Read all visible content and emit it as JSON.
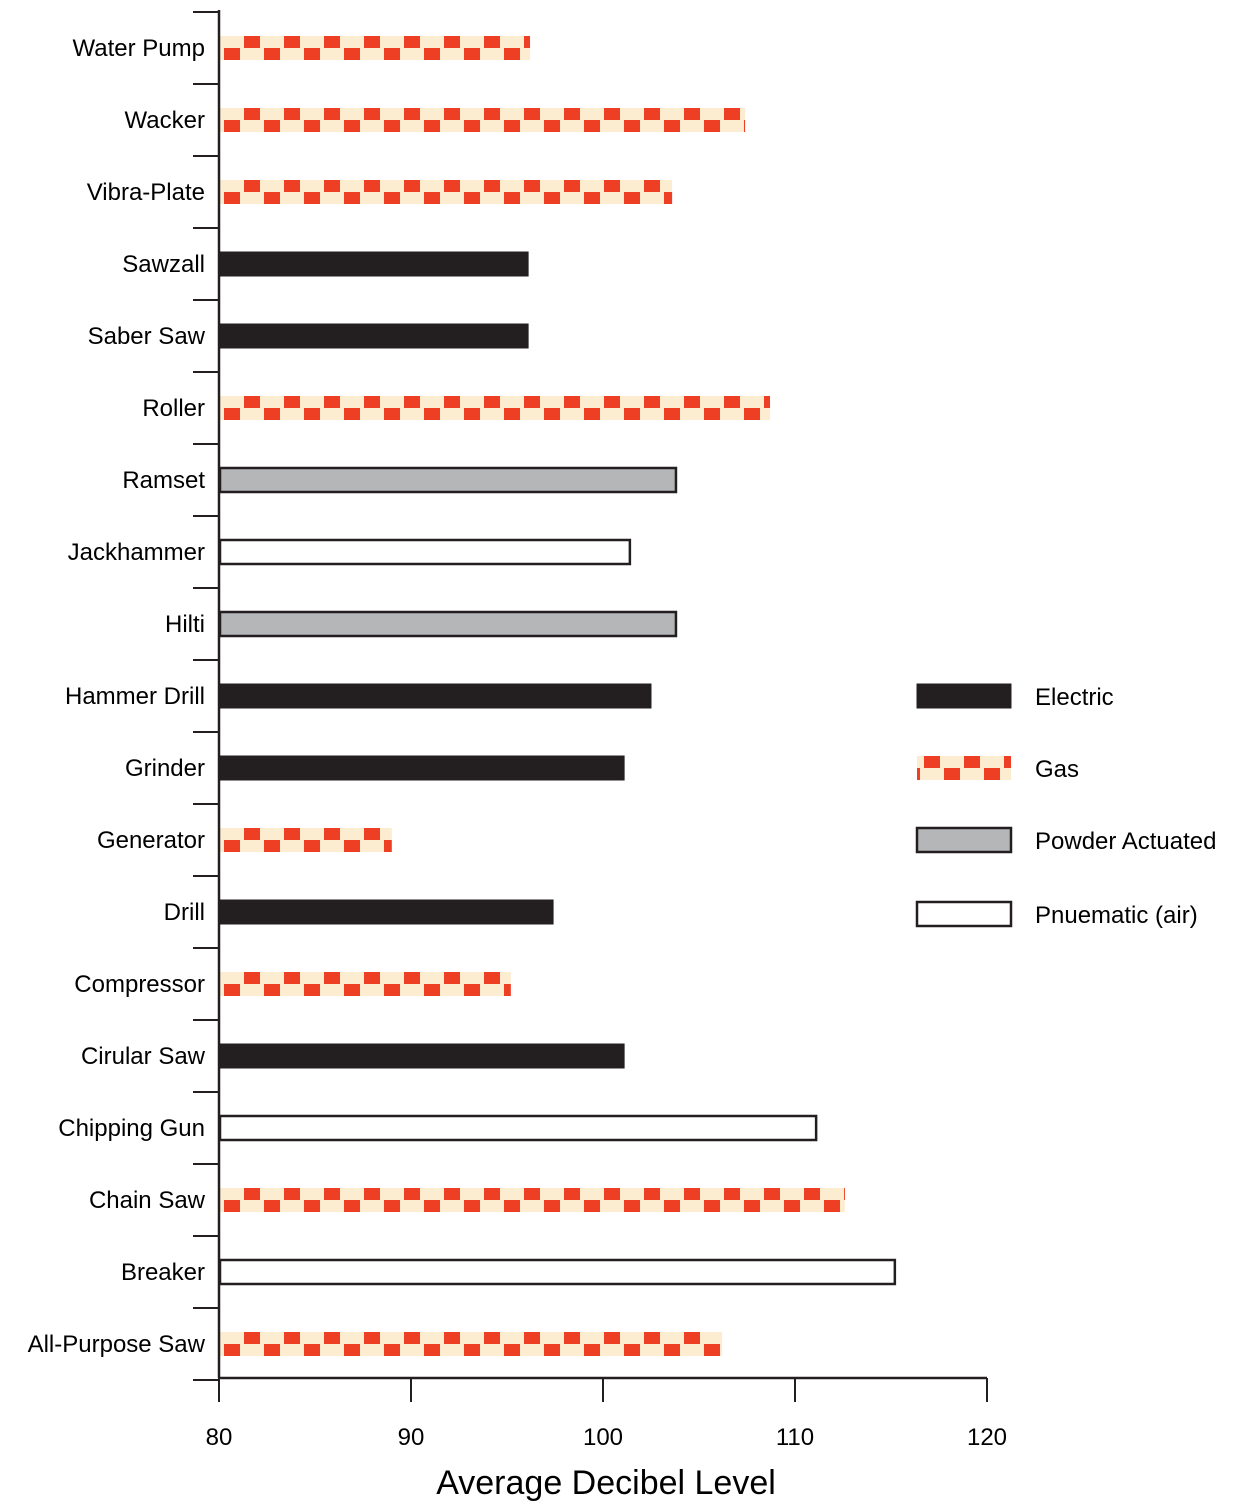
{
  "chart_data": {
    "type": "bar",
    "orientation": "horizontal",
    "xlabel": "Average Decibel Level",
    "ylabel": "",
    "xlim": [
      80,
      120
    ],
    "xticks": [
      "80",
      "90",
      "100",
      "110",
      "120"
    ],
    "grid": false,
    "legend_position": "right",
    "legend": [
      {
        "name": "Electric",
        "style": "electric"
      },
      {
        "name": "Gas",
        "style": "gas"
      },
      {
        "name": "Powder Actuated",
        "style": "powder"
      },
      {
        "name": "Pnuematic (air)",
        "style": "pneumatic"
      }
    ],
    "bars": [
      {
        "label": "Water Pump",
        "value": 96.2,
        "type": "gas"
      },
      {
        "label": "Wacker",
        "value": 107.4,
        "type": "gas"
      },
      {
        "label": "Vibra-Plate",
        "value": 103.6,
        "type": "gas"
      },
      {
        "label": "Sawzall",
        "value": 96.1,
        "type": "electric"
      },
      {
        "label": "Saber Saw",
        "value": 96.1,
        "type": "electric"
      },
      {
        "label": "Roller",
        "value": 108.7,
        "type": "gas"
      },
      {
        "label": "Ramset",
        "value": 103.8,
        "type": "powder"
      },
      {
        "label": "Jackhammer",
        "value": 101.4,
        "type": "pneumatic"
      },
      {
        "label": "Hilti",
        "value": 103.8,
        "type": "powder"
      },
      {
        "label": "Hammer Drill",
        "value": 102.5,
        "type": "electric"
      },
      {
        "label": "Grinder",
        "value": 101.1,
        "type": "electric"
      },
      {
        "label": "Generator",
        "value": 89.0,
        "type": "gas"
      },
      {
        "label": "Drill",
        "value": 97.4,
        "type": "electric"
      },
      {
        "label": "Compressor",
        "value": 95.2,
        "type": "gas"
      },
      {
        "label": "Cirular Saw",
        "value": 101.1,
        "type": "electric"
      },
      {
        "label": "Chipping Gun",
        "value": 111.1,
        "type": "pneumatic"
      },
      {
        "label": "Chain Saw",
        "value": 112.6,
        "type": "gas"
      },
      {
        "label": "Breaker",
        "value": 115.2,
        "type": "pneumatic"
      },
      {
        "label": "All-Purpose Saw",
        "value": 106.2,
        "type": "gas"
      }
    ]
  },
  "colors": {
    "electric": "#231f20",
    "gas_fill": "#fdedd0",
    "gas_check": "#ee3e24",
    "powder": "#b5b6b8",
    "pneumatic": "#ffffff",
    "outline": "#231f20"
  }
}
